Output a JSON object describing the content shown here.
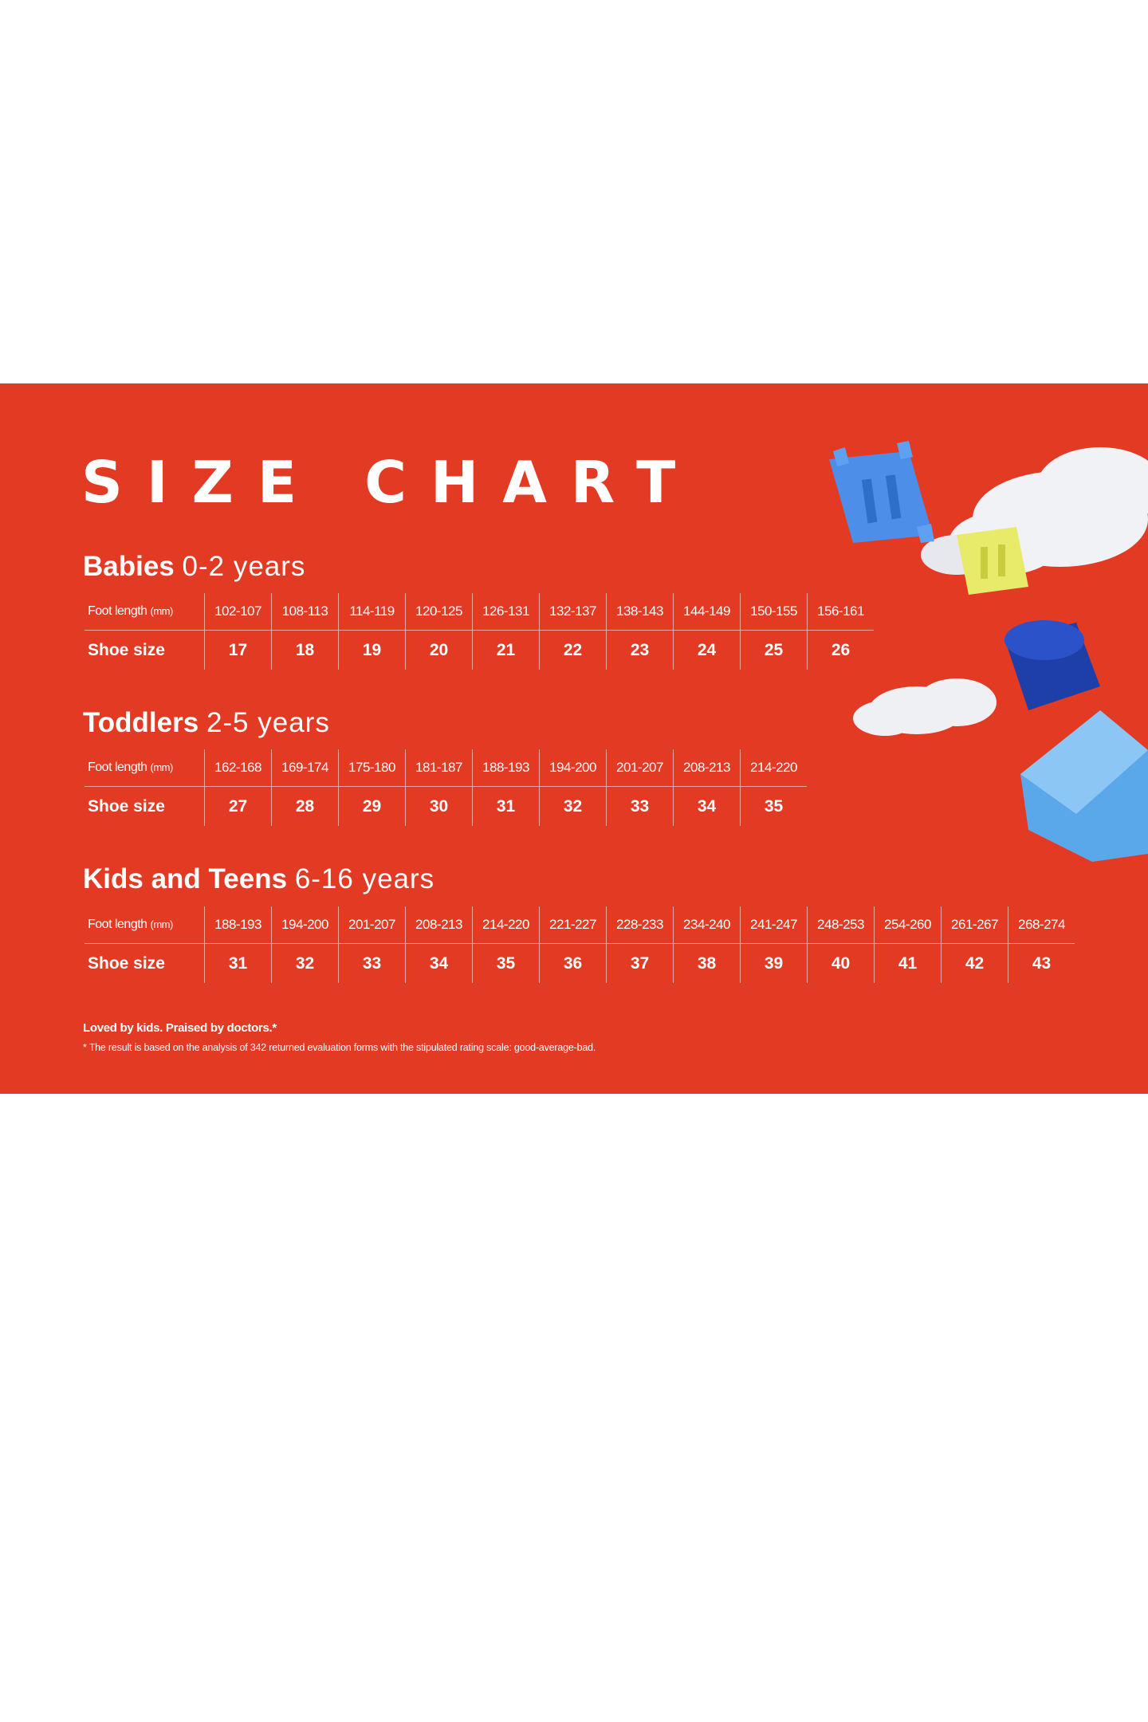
{
  "title": "SIZE CHART",
  "foot_label": "Foot length",
  "foot_unit": "(mm)",
  "shoe_label": "Shoe size",
  "sections": [
    {
      "name": "Babies",
      "age": "0-2 years",
      "lengths": [
        "102-107",
        "108-113",
        "114-119",
        "120-125",
        "126-131",
        "132-137",
        "138-143",
        "144-149",
        "150-155",
        "156-161"
      ],
      "sizes": [
        "17",
        "18",
        "19",
        "20",
        "21",
        "22",
        "23",
        "24",
        "25",
        "26"
      ]
    },
    {
      "name": "Toddlers",
      "age": "2-5 years",
      "lengths": [
        "162-168",
        "169-174",
        "175-180",
        "181-187",
        "188-193",
        "194-200",
        "201-207",
        "208-213",
        "214-220"
      ],
      "sizes": [
        "27",
        "28",
        "29",
        "30",
        "31",
        "32",
        "33",
        "34",
        "35"
      ]
    },
    {
      "name": "Kids and Teens",
      "age": "6-16 years",
      "lengths": [
        "188-193",
        "194-200",
        "201-207",
        "208-213",
        "214-220",
        "221-227",
        "228-233",
        "234-240",
        "241-247",
        "248-253",
        "254-260",
        "261-267",
        "268-274"
      ],
      "sizes": [
        "31",
        "32",
        "33",
        "34",
        "35",
        "36",
        "37",
        "38",
        "39",
        "40",
        "41",
        "42",
        "43"
      ]
    }
  ],
  "footnote_title": "Loved by kids. Praised by doctors.*",
  "footnote_text": "* The result is based on the analysis of 342 returned evaluation forms with the stipulated rating scale: good-average-bad.",
  "colors": {
    "background": "#e33a24",
    "text": "#ffffff"
  }
}
